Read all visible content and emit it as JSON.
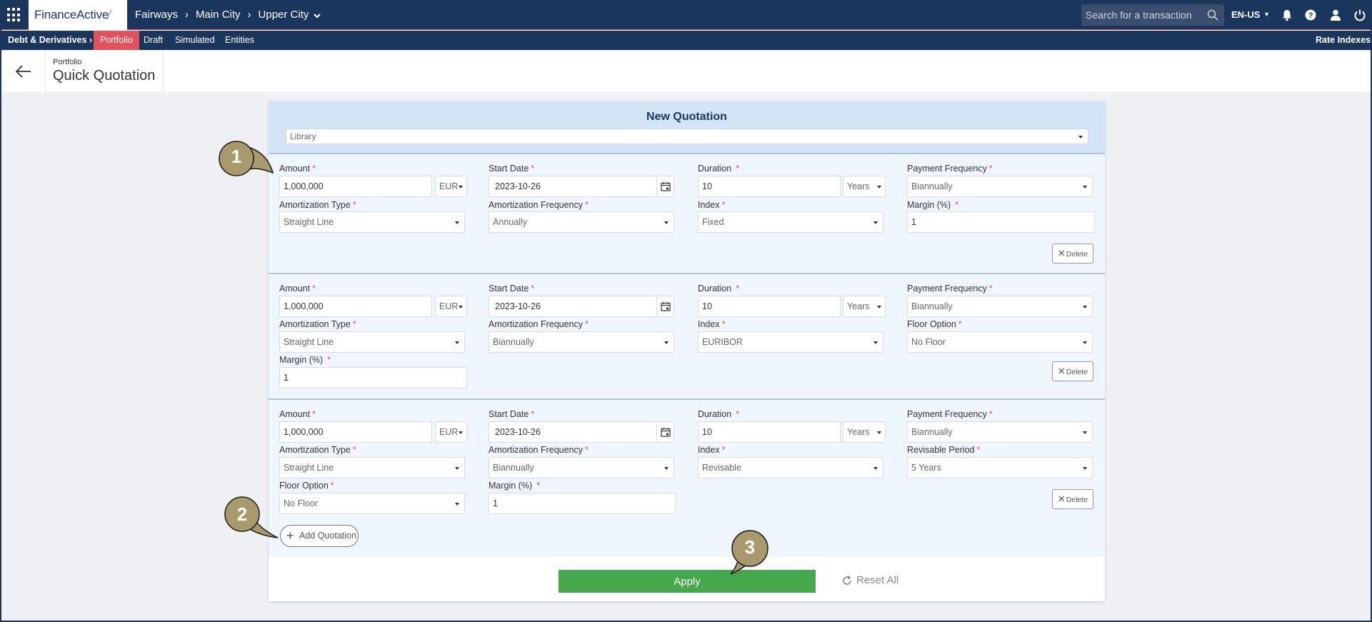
{
  "topbar": {
    "brand": "FinanceActive",
    "breadcrumb": [
      "Fairways",
      "Main City",
      "Upper City"
    ],
    "search_placeholder": "Search for a transaction",
    "language": "EN-US",
    "icons": [
      "apps-grid-icon",
      "search-icon",
      "bell-icon",
      "help-icon",
      "user-icon",
      "power-icon"
    ]
  },
  "subnav": {
    "section": "Debt & Derivatives",
    "items": [
      "Portfolio",
      "Draft",
      "Simulated",
      "Entities"
    ],
    "active": "Portfolio",
    "right": "Rate Indexes"
  },
  "page": {
    "subtitle": "Portfolio",
    "title": "Quick Quotation"
  },
  "panel": {
    "title": "New Quotation",
    "library_placeholder": "Library",
    "labels": {
      "amount": "Amount",
      "start_date": "Start Date",
      "duration": "Duration",
      "payment_frequency": "Payment Frequency",
      "amortization_type": "Amortization Type",
      "amortization_frequency": "Amortization Frequency",
      "index": "Index",
      "margin": "Margin (%)",
      "floor_option": "Floor Option",
      "revisable_period": "Revisable Period"
    },
    "required_mark": "*",
    "delete_label": "Delete",
    "quotations": [
      {
        "amount": "1,000,000",
        "currency": "EUR",
        "start_date": "2023-10-26",
        "duration": "10",
        "duration_unit": "Years",
        "payment_frequency": "Biannually",
        "amortization_type": "Straight Line",
        "amortization_frequency": "Annually",
        "index": "Fixed",
        "margin": "1"
      },
      {
        "amount": "1,000,000",
        "currency": "EUR",
        "start_date": "2023-10-26",
        "duration": "10",
        "duration_unit": "Years",
        "payment_frequency": "Biannually",
        "amortization_type": "Straight Line",
        "amortization_frequency": "Biannually",
        "index": "EURIBOR",
        "floor_option": "No Floor",
        "margin": "1"
      },
      {
        "amount": "1,000,000",
        "currency": "EUR",
        "start_date": "2023-10-26",
        "duration": "10",
        "duration_unit": "Years",
        "payment_frequency": "Biannually",
        "amortization_type": "Straight Line",
        "amortization_frequency": "Biannually",
        "index": "Revisable",
        "revisable_period": "5 Years",
        "floor_option": "No Floor",
        "margin": "1"
      }
    ],
    "add_quotation": "Add Quotation",
    "apply": "Apply",
    "reset_all": "Reset All"
  },
  "callouts": [
    "1",
    "2",
    "3"
  ],
  "colors": {
    "navy": "#1b365d",
    "active_tab": "#e2525c",
    "required": "#e2525c",
    "apply_green": "#46a84c",
    "panel_header": "#d3e4f7",
    "block_bg": "#f0f6fd",
    "callout": "#a89a6c"
  }
}
